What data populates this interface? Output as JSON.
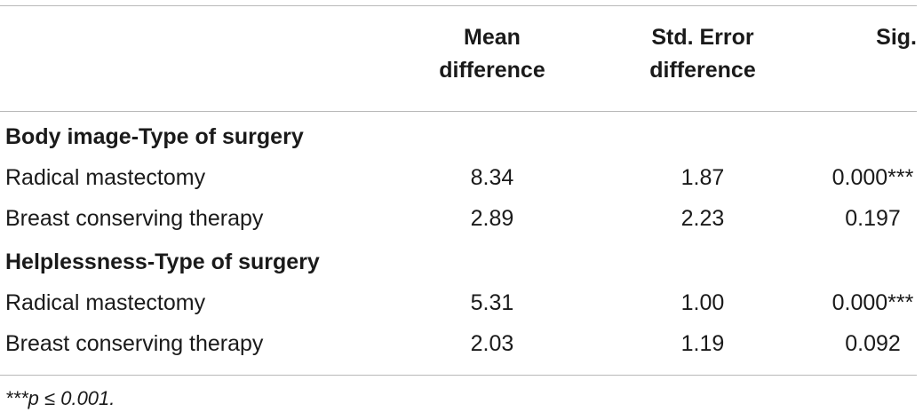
{
  "table": {
    "headers": {
      "mean_line1": "Mean",
      "mean_line2": "difference",
      "se_line1": "Std. Error",
      "se_line2": "difference",
      "sig": "Sig."
    },
    "groups": [
      {
        "title": "Body image-Type of surgery",
        "rows": [
          {
            "label": "Radical mastectomy",
            "mean": "8.34",
            "se": "1.87",
            "sig": "0.000***"
          },
          {
            "label": "Breast conserving therapy",
            "mean": "2.89",
            "se": "2.23",
            "sig": "0.197"
          }
        ]
      },
      {
        "title": "Helplessness-Type of surgery",
        "rows": [
          {
            "label": "Radical mastectomy",
            "mean": "5.31",
            "se": "1.00",
            "sig": "0.000***"
          },
          {
            "label": "Breast conserving therapy",
            "mean": "2.03",
            "se": "1.19",
            "sig": "0.092"
          }
        ]
      }
    ],
    "footnote": "***p ≤ 0.001."
  }
}
